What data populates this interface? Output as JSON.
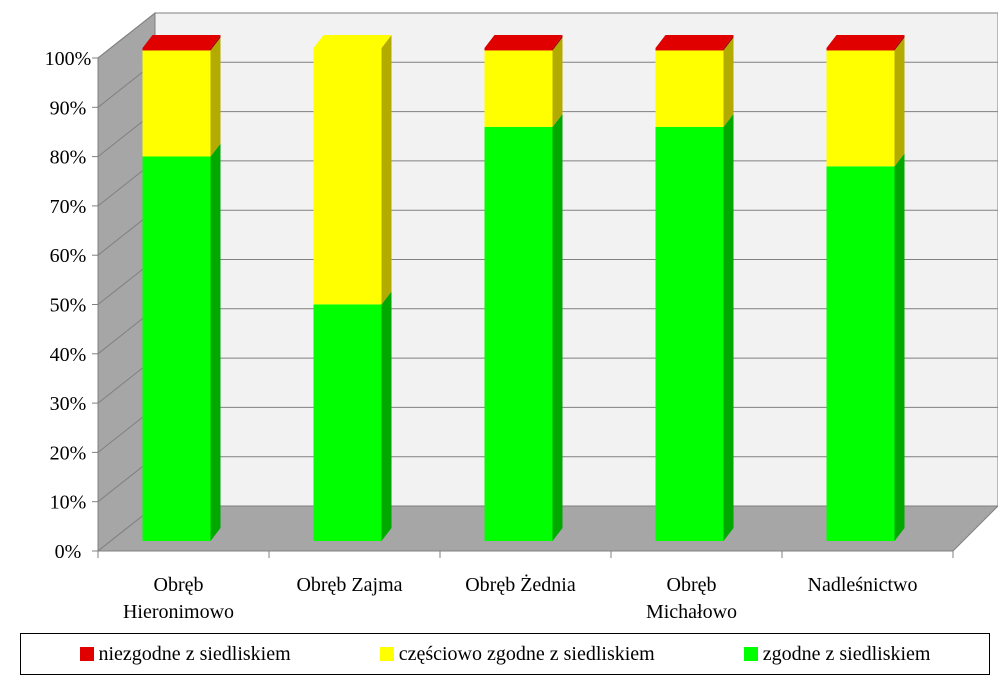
{
  "chart_data": {
    "type": "bar",
    "stacked": true,
    "percent_stacked": true,
    "three_d": true,
    "categories": [
      [
        "Obręb",
        "Hieronimowo"
      ],
      [
        "Obręb Zajma"
      ],
      [
        "Obręb Żednia"
      ],
      [
        "Obręb",
        "Michałowo"
      ],
      [
        "Nadleśnictwo"
      ]
    ],
    "series": [
      {
        "name": "zgodne z siedliskiem",
        "color": "#00ff00",
        "side_color": "#00a800",
        "values": [
          78,
          48,
          84,
          84,
          76
        ]
      },
      {
        "name": "częściowo zgodne z siedliskiem",
        "color": "#ffff00",
        "side_color": "#b3ab00",
        "values": [
          21.5,
          52,
          15.5,
          15.5,
          23.5
        ]
      },
      {
        "name": "niezgodne z siedliskiem",
        "color": "#e00000",
        "side_color": "#a80000",
        "values": [
          0.5,
          0,
          0.5,
          0.5,
          0.5
        ]
      }
    ],
    "y_ticks": [
      "0%",
      "10%",
      "20%",
      "30%",
      "40%",
      "50%",
      "60%",
      "70%",
      "80%",
      "90%",
      "100%"
    ],
    "ylim": [
      0,
      100
    ],
    "grid": true,
    "legend_position": "bottom"
  },
  "legend": {
    "items": [
      {
        "label": "niezgodne z siedliskiem",
        "color": "#e00000"
      },
      {
        "label": "częściowo zgodne z siedliskiem",
        "color": "#ffff00"
      },
      {
        "label": "zgodne z siedliskiem",
        "color": "#00ff00"
      }
    ]
  }
}
